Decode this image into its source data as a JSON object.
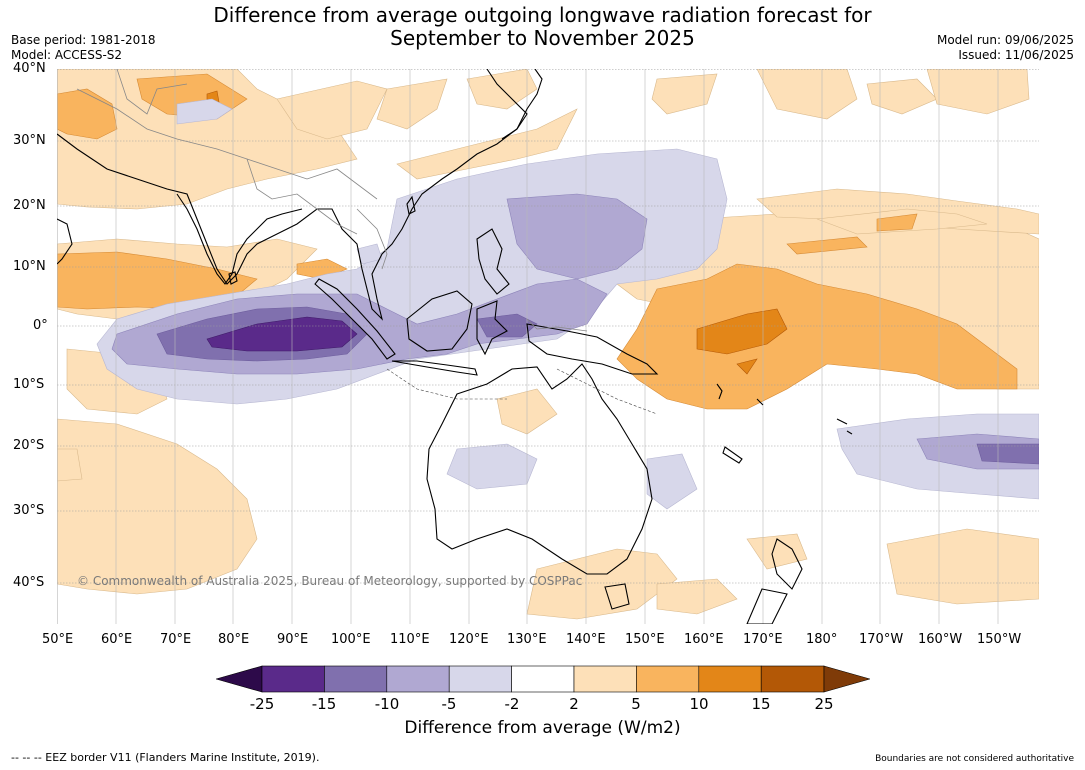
{
  "title": {
    "line1": "Difference from average outgoing longwave radiation forecast for",
    "line2": "September to November 2025"
  },
  "meta_left": {
    "base_period": "Base period: 1981-2018",
    "model": "Model: ACCESS-S2"
  },
  "meta_right": {
    "model_run": "Model run: 09/06/2025",
    "issued": "Issued: 11/06/2025"
  },
  "map": {
    "latitude_labels": [
      "40°N",
      "30°N",
      "20°N",
      "10°N",
      "0°",
      "10°S",
      "20°S",
      "30°S",
      "40°S"
    ],
    "longitude_labels": [
      "50°E",
      "60°E",
      "70°E",
      "80°E",
      "90°E",
      "100°E",
      "110°E",
      "120°E",
      "130°E",
      "140°E",
      "150°E",
      "160°E",
      "170°E",
      "180°",
      "170°W",
      "160°W",
      "150°W"
    ],
    "copyright": "© Commonwealth of Australia 2025, Bureau of Meteorology, supported by COSPPac"
  },
  "colorbar": {
    "label": "Difference from average (W/m2)",
    "tick_labels": [
      "-25",
      "-15",
      "-10",
      "-5",
      "-2",
      "2",
      "5",
      "10",
      "15",
      "25"
    ],
    "colors": [
      "#2d0a4a",
      "#5a2a8a",
      "#8070ae",
      "#b0a8d2",
      "#d7d7ea",
      "#ffffff",
      "#fde0b8",
      "#f9b45e",
      "#e38618",
      "#b35806",
      "#7f3b08"
    ]
  },
  "footer": {
    "left": "--  --  -- EEZ border V11 (Flanders Marine Institute, 2019).",
    "right": "Boundaries are not considered authoritative"
  }
}
